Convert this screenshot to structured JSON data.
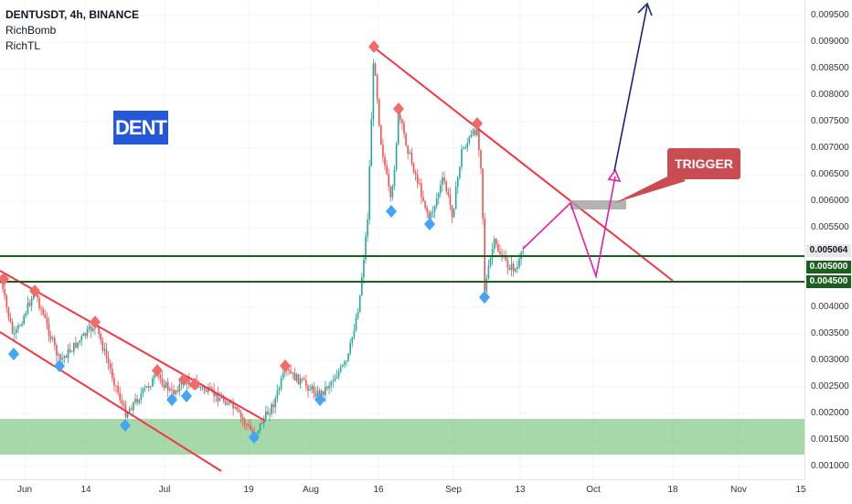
{
  "legend": {
    "symbol": "DENTUSDT, 4h, BINANCE",
    "indicator_1": "RichBomb",
    "indicator_2": "RichTL"
  },
  "annotations": {
    "dent_label": "DENT",
    "trigger_label": "TRIGGER"
  },
  "price_axis": {
    "ticks": [
      "0.009500",
      "0.009000",
      "0.008500",
      "0.008000",
      "0.007500",
      "0.007000",
      "0.006500",
      "0.006000",
      "0.005500",
      "0.004000",
      "0.003500",
      "0.003000",
      "0.002500",
      "0.002000",
      "0.001500",
      "0.001000"
    ],
    "current_price": "0.005064",
    "level_upper": "0.005000",
    "level_lower": "0.004500"
  },
  "time_axis": {
    "labels": [
      "Jun",
      "14",
      "Jul",
      "19",
      "Aug",
      "16",
      "Sep",
      "13",
      "Oct",
      "18",
      "Nov",
      "15"
    ]
  },
  "colors": {
    "up_candle": "#26a69a",
    "down_candle": "#ef5350",
    "trendline": "#f23645",
    "level_line": "#1b5e20",
    "support_zone": "#81c784",
    "buy_marker": "#42a5f5",
    "sell_marker": "#ef6c6c",
    "projection": "#e91e9f",
    "target_arrow": "#1a237e",
    "dent_bg": "#2458d6",
    "trigger_bg": "#c94c52",
    "current_price_bg": "#e8e8e8",
    "level_badge_bg": "#1b5e20"
  }
}
